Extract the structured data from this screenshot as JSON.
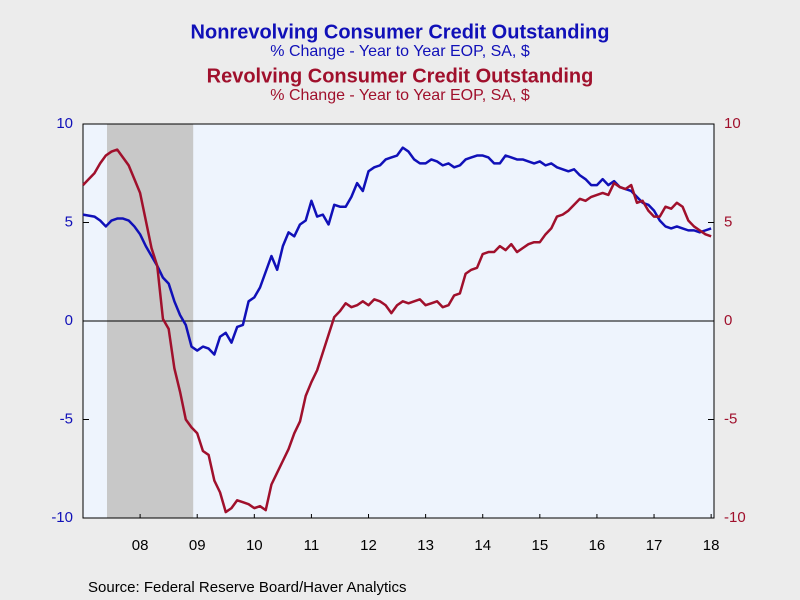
{
  "chart_data": {
    "type": "line",
    "source": "Source:  Federal Reserve Board/Haver Analytics",
    "x": [
      2007.5,
      2007.6,
      2007.7,
      2007.8,
      2007.9,
      2008.0,
      2008.1,
      2008.2,
      2008.3,
      2008.4,
      2008.5,
      2008.6,
      2008.7,
      2008.8,
      2008.9,
      2009.0,
      2009.1,
      2009.2,
      2009.3,
      2009.4,
      2009.5,
      2009.6,
      2009.7,
      2009.8,
      2009.9,
      2010.0,
      2010.1,
      2010.2,
      2010.3,
      2010.4,
      2010.5,
      2010.6,
      2010.7,
      2010.8,
      2010.9,
      2011.0,
      2011.1,
      2011.2,
      2011.3,
      2011.4,
      2011.5,
      2011.6,
      2011.7,
      2011.8,
      2011.9,
      2012.0,
      2012.1,
      2012.2,
      2012.3,
      2012.4,
      2012.5,
      2012.6,
      2012.7,
      2012.8,
      2012.9,
      2013.0,
      2013.1,
      2013.2,
      2013.3,
      2013.4,
      2013.5,
      2013.6,
      2013.7,
      2013.8,
      2013.9,
      2014.0,
      2014.1,
      2014.2,
      2014.3,
      2014.4,
      2014.5,
      2014.6,
      2014.7,
      2014.8,
      2014.9,
      2015.0,
      2015.1,
      2015.2,
      2015.3,
      2015.4,
      2015.5,
      2015.6,
      2015.7,
      2015.8,
      2015.9,
      2016.0,
      2016.1,
      2016.2,
      2016.3,
      2016.4,
      2016.5,
      2016.6,
      2016.7,
      2016.8,
      2016.9,
      2017.0,
      2017.1,
      2017.2,
      2017.3,
      2017.4,
      2017.5,
      2017.6,
      2017.7,
      2017.8,
      2017.9,
      2018.0,
      2018.1,
      2018.2,
      2018.3,
      2018.4,
      2018.5
    ],
    "series": [
      {
        "name": "Nonrevolving Consumer Credit Outstanding",
        "subtitle": "% Change - Year to Year    EOP, SA, $",
        "color": "#1010b8",
        "axis": "y",
        "values": [
          5.4,
          5.35,
          5.3,
          5.1,
          4.8,
          5.1,
          5.2,
          5.2,
          5.1,
          4.8,
          4.4,
          3.8,
          3.3,
          2.8,
          2.2,
          1.9,
          1.0,
          0.3,
          -0.2,
          -1.3,
          -1.5,
          -1.3,
          -1.4,
          -1.7,
          -0.8,
          -0.6,
          -1.1,
          -0.3,
          -0.2,
          1.0,
          1.2,
          1.7,
          2.5,
          3.3,
          2.6,
          3.8,
          4.5,
          4.3,
          4.9,
          5.1,
          6.1,
          5.3,
          5.4,
          4.9,
          5.9,
          5.8,
          5.8,
          6.3,
          7.0,
          6.6,
          7.6,
          7.8,
          7.9,
          8.2,
          8.3,
          8.4,
          8.8,
          8.6,
          8.2,
          8.0,
          8.0,
          8.2,
          8.1,
          7.9,
          8.0,
          7.8,
          7.9,
          8.2,
          8.3,
          8.4,
          8.4,
          8.3,
          8.0,
          8.0,
          8.4,
          8.3,
          8.2,
          8.2,
          8.1,
          8.0,
          8.1,
          7.9,
          8.0,
          7.8,
          7.7,
          7.6,
          7.7,
          7.4,
          7.2,
          6.9,
          6.9,
          7.2,
          6.9,
          7.1,
          6.8,
          6.7,
          6.6,
          6.3,
          6.0,
          5.9,
          5.6,
          5.1,
          4.8,
          4.7,
          4.8,
          4.7,
          4.6,
          4.6,
          4.5,
          4.6,
          4.7
        ]
      },
      {
        "name": "Revolving Consumer Credit Outstanding",
        "subtitle": "% Change - Year to Year    EOP, SA, $",
        "color": "#a0102c",
        "axis": "y2",
        "values": [
          6.9,
          7.2,
          7.5,
          8.0,
          8.4,
          8.6,
          8.7,
          8.3,
          7.9,
          7.2,
          6.5,
          5.1,
          3.7,
          2.8,
          0.1,
          -0.4,
          -2.4,
          -3.6,
          -5.0,
          -5.4,
          -5.7,
          -6.6,
          -6.8,
          -8.1,
          -8.7,
          -9.7,
          -9.5,
          -9.1,
          -9.2,
          -9.3,
          -9.5,
          -9.4,
          -9.6,
          -8.3,
          -7.7,
          -7.1,
          -6.5,
          -5.7,
          -5.1,
          -3.8,
          -3.1,
          -2.5,
          -1.6,
          -0.7,
          0.2,
          0.5,
          0.9,
          0.7,
          0.8,
          1.0,
          0.8,
          1.1,
          1.0,
          0.8,
          0.4,
          0.8,
          1.0,
          0.9,
          1.0,
          1.1,
          0.8,
          0.9,
          1.0,
          0.7,
          0.8,
          1.3,
          1.4,
          2.4,
          2.6,
          2.7,
          3.4,
          3.5,
          3.5,
          3.8,
          3.6,
          3.9,
          3.5,
          3.7,
          3.9,
          4.0,
          4.0,
          4.4,
          4.7,
          5.3,
          5.4,
          5.6,
          5.9,
          6.2,
          6.1,
          6.3,
          6.4,
          6.5,
          6.4,
          7.0,
          6.8,
          6.7,
          6.9,
          6.0,
          6.1,
          5.6,
          5.3,
          5.3,
          5.8,
          5.7,
          6.0,
          5.8,
          5.1,
          4.8,
          4.6,
          4.4,
          4.3
        ]
      }
    ],
    "recession": [
      2007.92,
      2009.43
    ],
    "xlim": [
      2007.5,
      2018.55
    ],
    "xticks": [
      {
        "value": 2008.5,
        "label": "08"
      },
      {
        "value": 2009.5,
        "label": "09"
      },
      {
        "value": 2010.5,
        "label": "10"
      },
      {
        "value": 2011.5,
        "label": "11"
      },
      {
        "value": 2012.5,
        "label": "12"
      },
      {
        "value": 2013.5,
        "label": "13"
      },
      {
        "value": 2014.5,
        "label": "14"
      },
      {
        "value": 2015.5,
        "label": "15"
      },
      {
        "value": 2016.5,
        "label": "16"
      },
      {
        "value": 2017.5,
        "label": "17"
      },
      {
        "value": 2018.5,
        "label": "18"
      }
    ],
    "ylim": [
      -10,
      10
    ],
    "yticks": [
      -10,
      -5,
      0,
      5,
      10
    ],
    "y2lim": [
      -10,
      10
    ],
    "y2ticks": [
      -10,
      -5,
      0,
      5,
      10
    ]
  }
}
